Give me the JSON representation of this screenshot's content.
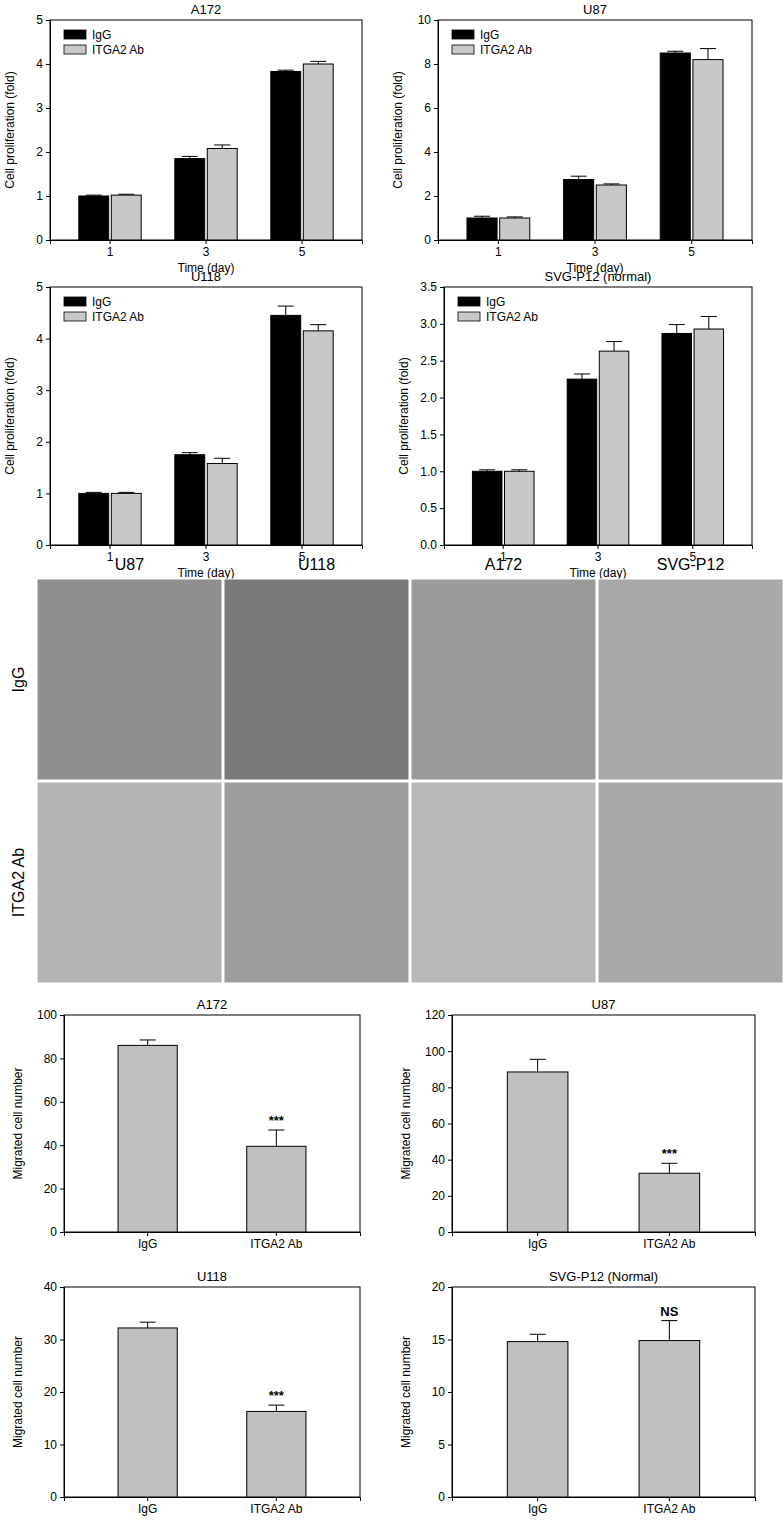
{
  "chart_data": [
    {
      "type": "bar",
      "title": "A172",
      "x_label": "Time (day)",
      "y_label": "Cell proliferation (fold)",
      "categories": [
        "1",
        "3",
        "5"
      ],
      "series": [
        {
          "name": "IgG",
          "color": "#000000",
          "values": [
            1.0,
            1.85,
            3.83
          ],
          "errors": [
            0.02,
            0.05,
            0.03
          ]
        },
        {
          "name": "ITGA2 Ab",
          "color": "#c8c8c8",
          "values": [
            1.02,
            2.08,
            4.0
          ],
          "errors": [
            0.02,
            0.08,
            0.06
          ]
        }
      ],
      "ylim": [
        0,
        5
      ],
      "yticks": [
        0,
        1,
        2,
        3,
        4,
        5
      ],
      "legend": "upper left"
    },
    {
      "type": "bar",
      "title": "U87",
      "x_label": "Time (day)",
      "y_label": "Cell proliferation (fold)",
      "categories": [
        "1",
        "3",
        "5"
      ],
      "series": [
        {
          "name": "IgG",
          "color": "#000000",
          "values": [
            1.0,
            2.75,
            8.5
          ],
          "errors": [
            0.08,
            0.15,
            0.08
          ]
        },
        {
          "name": "ITGA2 Ab",
          "color": "#c8c8c8",
          "values": [
            1.0,
            2.5,
            8.2
          ],
          "errors": [
            0.05,
            0.05,
            0.5
          ]
        }
      ],
      "ylim": [
        0,
        10
      ],
      "yticks": [
        0,
        2,
        4,
        6,
        8,
        10
      ],
      "legend": "upper left"
    },
    {
      "type": "bar",
      "title": "U118",
      "x_label": "Time (day)",
      "y_label": "Cell proliferation (fold)",
      "categories": [
        "1",
        "3",
        "5"
      ],
      "series": [
        {
          "name": "IgG",
          "color": "#000000",
          "values": [
            1.0,
            1.75,
            4.45
          ],
          "errors": [
            0.02,
            0.04,
            0.18
          ]
        },
        {
          "name": "ITGA2 Ab",
          "color": "#c8c8c8",
          "values": [
            1.0,
            1.58,
            4.15
          ],
          "errors": [
            0.02,
            0.1,
            0.12
          ]
        }
      ],
      "ylim": [
        0,
        5
      ],
      "yticks": [
        0,
        1,
        2,
        3,
        4,
        5
      ],
      "legend": "upper left"
    },
    {
      "type": "bar",
      "title": "SVG-P12 (normal)",
      "x_label": "Time (day)",
      "y_label": "Cell proliferation (fold)",
      "categories": [
        "1",
        "3",
        "5"
      ],
      "series": [
        {
          "name": "IgG",
          "color": "#000000",
          "values": [
            1.0,
            2.25,
            2.87
          ],
          "errors": [
            0.02,
            0.07,
            0.12
          ]
        },
        {
          "name": "ITGA2 Ab",
          "color": "#c8c8c8",
          "values": [
            1.0,
            2.63,
            2.93
          ],
          "errors": [
            0.02,
            0.13,
            0.17
          ]
        }
      ],
      "ylim": [
        0,
        3.5
      ],
      "yticks": [
        {
          "value": 0,
          "label": "0.0"
        },
        {
          "value": 0.5,
          "label": "0.5"
        },
        {
          "value": 1,
          "label": "1.0"
        },
        {
          "value": 1.5,
          "label": "1.5"
        },
        {
          "value": 2,
          "label": "2.0"
        },
        {
          "value": 2.5,
          "label": "2.5"
        },
        {
          "value": 3,
          "label": "3.0"
        },
        {
          "value": 3.5,
          "label": "3.5"
        }
      ],
      "legend": "upper left"
    },
    {
      "type": "bar",
      "title": "A172",
      "y_label": "Migrated cell number",
      "categories": [
        "IgG",
        "ITGA2 Ab"
      ],
      "values": [
        86,
        39.5
      ],
      "errors": [
        2.5,
        7.5
      ],
      "color": "#c0c0c0",
      "ylim": [
        0,
        100
      ],
      "yticks": [
        0,
        20,
        40,
        60,
        80,
        100
      ],
      "annotations": [
        {
          "text": "***",
          "category": "ITGA2 Ab"
        }
      ]
    },
    {
      "type": "bar",
      "title": "U87",
      "y_label": "Migrated cell number",
      "categories": [
        "IgG",
        "ITGA2 Ab"
      ],
      "values": [
        88.5,
        32.5
      ],
      "errors": [
        7,
        5.5
      ],
      "color": "#c0c0c0",
      "ylim": [
        0,
        120
      ],
      "yticks": [
        0,
        20,
        40,
        60,
        80,
        100,
        120
      ],
      "annotations": [
        {
          "text": "***",
          "category": "ITGA2 Ab"
        }
      ]
    },
    {
      "type": "bar",
      "title": "U118",
      "y_label": "Migrated cell number",
      "categories": [
        "IgG",
        "ITGA2 Ab"
      ],
      "values": [
        32.2,
        16.3
      ],
      "errors": [
        1.1,
        1.2
      ],
      "color": "#c0c0c0",
      "ylim": [
        0,
        40
      ],
      "yticks": [
        0,
        10,
        20,
        30,
        40
      ],
      "annotations": [
        {
          "text": "***",
          "category": "ITGA2 Ab"
        }
      ]
    },
    {
      "type": "bar",
      "title": "SVG-P12 (Normal)",
      "y_label": "Migrated cell number",
      "categories": [
        "IgG",
        "ITGA2 Ab"
      ],
      "values": [
        14.8,
        14.9
      ],
      "errors": [
        0.7,
        1.9
      ],
      "color": "#c0c0c0",
      "ylim": [
        0,
        20
      ],
      "yticks": [
        0,
        5,
        10,
        15,
        20
      ],
      "annotations": [
        {
          "text": "NS",
          "category": "ITGA2 Ab"
        }
      ]
    }
  ],
  "image_panel": {
    "columns": [
      "U87",
      "U118",
      "A172",
      "SVG-P12"
    ],
    "rows": [
      "IgG",
      "ITGA2 Ab"
    ]
  }
}
